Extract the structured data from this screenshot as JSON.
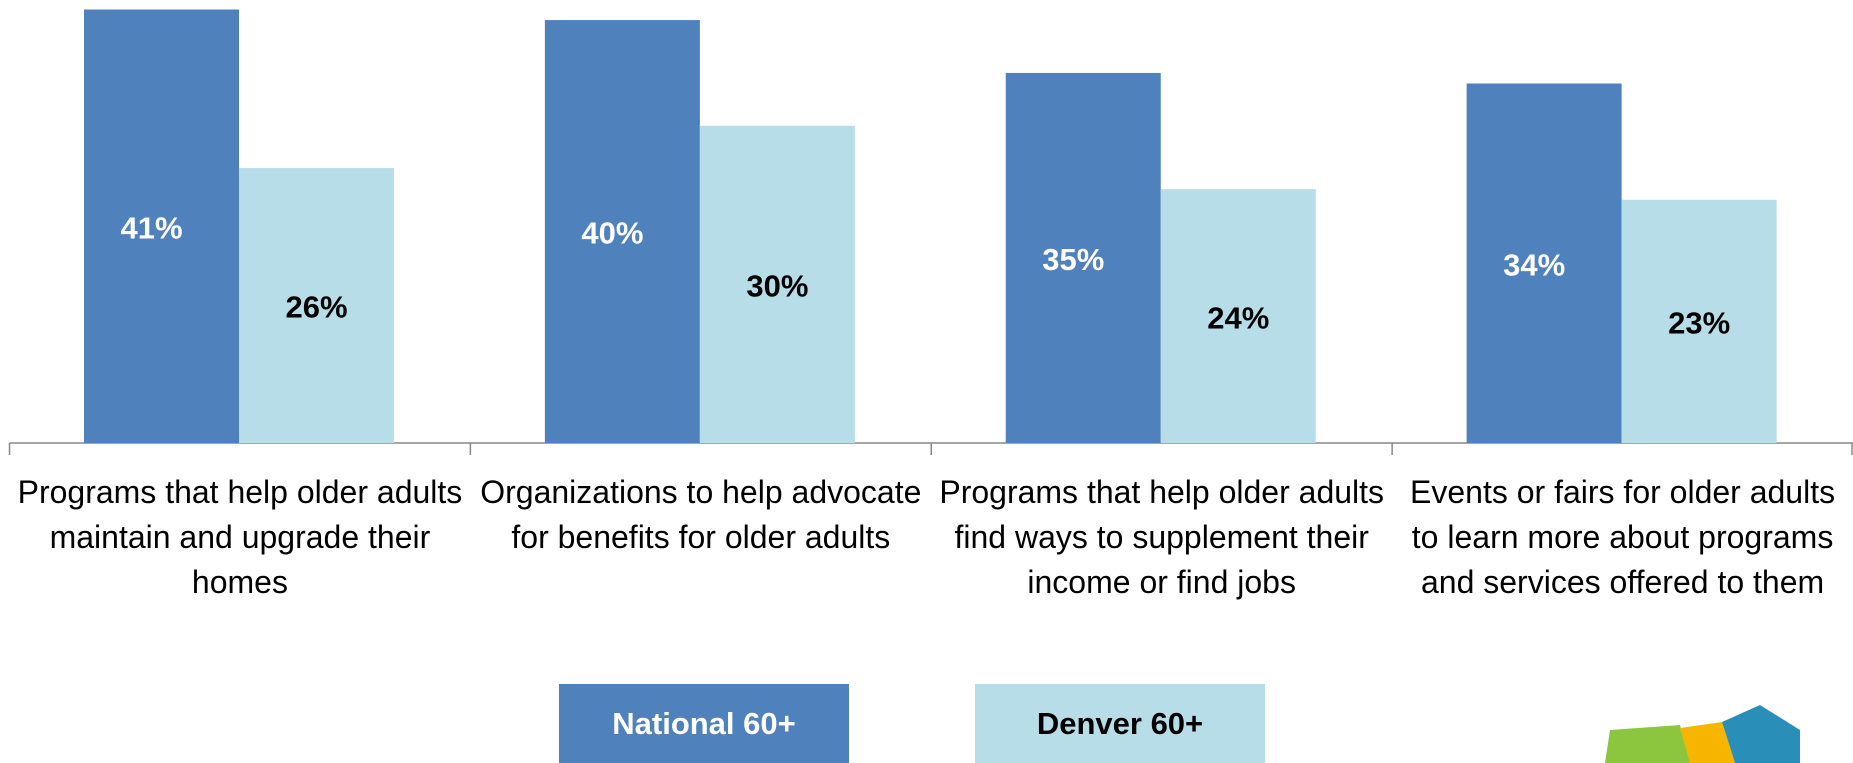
{
  "chart_data": {
    "type": "bar",
    "categories": [
      "Programs that help older adults maintain and upgrade their homes",
      "Organizations to help advocate for benefits for older adults",
      "Programs that help older adults find ways to supplement their income or find jobs",
      "Events or fairs for older adults to learn more about programs and services offered to them"
    ],
    "series": [
      {
        "name": "National 60+",
        "color": "#4f81bd",
        "values": [
          41,
          40,
          35,
          34
        ],
        "value_labels": [
          "41%",
          "40%",
          "35%",
          "34%"
        ]
      },
      {
        "name": "Denver 60+",
        "color": "#b7dde8",
        "values": [
          26,
          30,
          24,
          23
        ],
        "value_labels": [
          "26%",
          "30%",
          "24%",
          "23%"
        ]
      }
    ],
    "ylim": [
      0,
      41
    ],
    "legend": "bottom"
  }
}
